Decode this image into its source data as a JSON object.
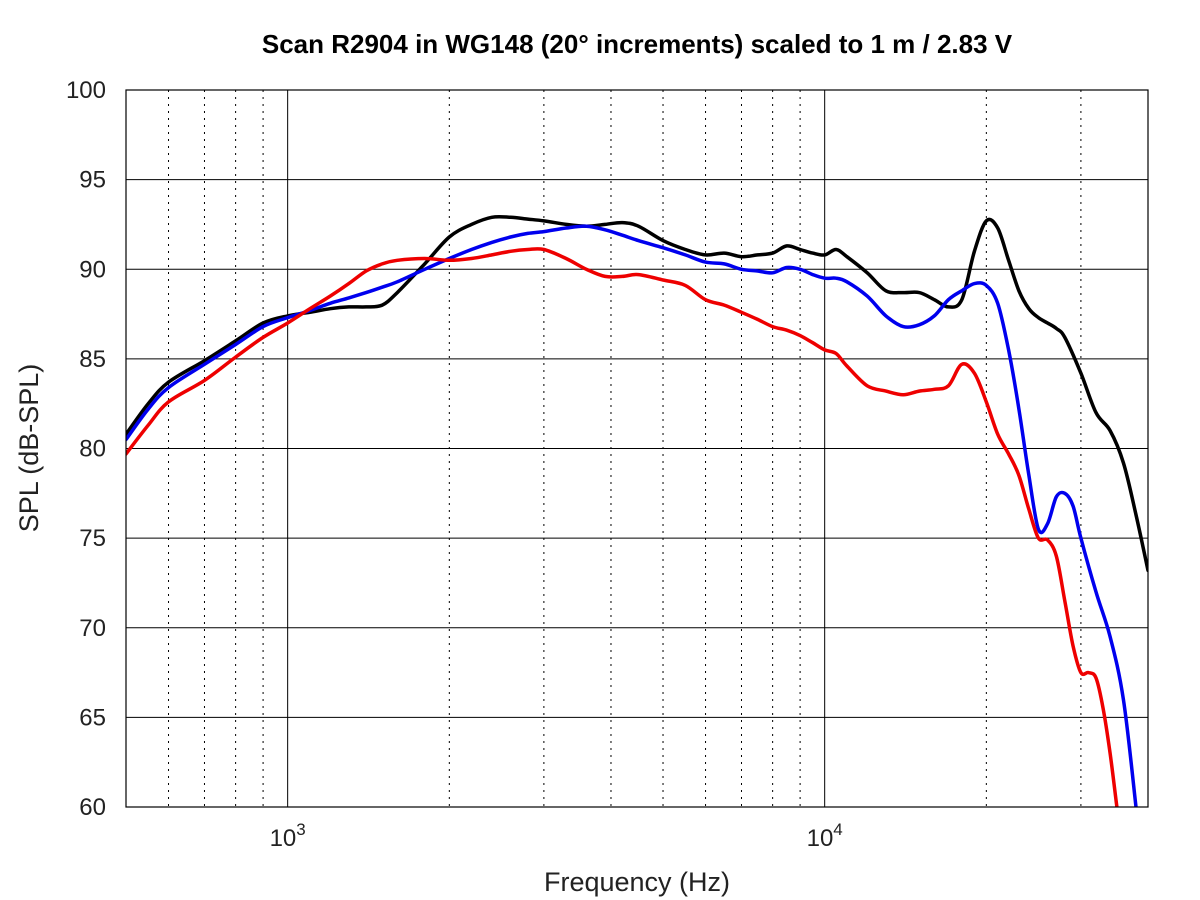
{
  "chart_data": {
    "type": "line",
    "title": "Scan R2904 in WG148 (20° increments) scaled to 1 m / 2.83 V",
    "xlabel": "Frequency (Hz)",
    "ylabel": "SPL (dB-SPL)",
    "x_scale": "log",
    "xlim": [
      500,
      40000
    ],
    "ylim": [
      60,
      100
    ],
    "y_ticks": [
      60,
      65,
      70,
      75,
      80,
      85,
      90,
      95,
      100
    ],
    "x_tick_labels": [
      {
        "value": 1000,
        "base": "10",
        "exp": "3"
      },
      {
        "value": 10000,
        "base": "10",
        "exp": "4"
      }
    ],
    "grid": true,
    "series": [
      {
        "color": "#000000",
        "x": [
          500,
          550,
          600,
          700,
          800,
          900,
          1000,
          1100,
          1200,
          1300,
          1400,
          1500,
          1600,
          1800,
          2000,
          2200,
          2400,
          2600,
          2800,
          3000,
          3300,
          3600,
          3900,
          4200,
          4500,
          5000,
          5500,
          6000,
          6500,
          7000,
          7500,
          8000,
          8500,
          9000,
          9500,
          10000,
          10500,
          11000,
          12000,
          13000,
          14000,
          15000,
          16000,
          17000,
          18000,
          19000,
          20000,
          21000,
          22000,
          23000,
          24000,
          25000,
          26000,
          27000,
          28000,
          30000,
          32000,
          34000,
          36000,
          38000,
          40000
        ],
        "values": [
          80.8,
          82.5,
          83.7,
          84.9,
          86.0,
          87.0,
          87.4,
          87.6,
          87.8,
          87.9,
          87.9,
          88.0,
          88.7,
          90.3,
          91.8,
          92.5,
          92.9,
          92.9,
          92.8,
          92.7,
          92.5,
          92.4,
          92.5,
          92.6,
          92.4,
          91.6,
          91.1,
          90.8,
          90.9,
          90.7,
          90.8,
          90.9,
          91.3,
          91.1,
          90.9,
          90.8,
          91.1,
          90.7,
          89.8,
          88.8,
          88.7,
          88.7,
          88.3,
          87.9,
          88.3,
          91.0,
          92.7,
          92.3,
          90.5,
          88.8,
          87.8,
          87.3,
          87.0,
          86.7,
          86.2,
          84.2,
          82.0,
          81.0,
          79.2,
          76.3,
          73.2
        ]
      },
      {
        "color": "#0000ee",
        "x": [
          500,
          550,
          600,
          700,
          800,
          900,
          1000,
          1100,
          1200,
          1300,
          1400,
          1500,
          1600,
          1800,
          2000,
          2200,
          2400,
          2600,
          2800,
          3000,
          3300,
          3600,
          3900,
          4200,
          4500,
          5000,
          5500,
          6000,
          6500,
          7000,
          7500,
          8000,
          8500,
          9000,
          9500,
          10000,
          10500,
          11000,
          12000,
          13000,
          14000,
          15000,
          16000,
          17000,
          18000,
          19000,
          20000,
          21000,
          22000,
          23000,
          24000,
          25000,
          26000,
          27000,
          28000,
          29000,
          30000,
          32000,
          34000,
          36000,
          38000
        ],
        "values": [
          80.5,
          82.2,
          83.4,
          84.7,
          85.8,
          86.8,
          87.3,
          87.7,
          88.1,
          88.4,
          88.7,
          89.0,
          89.3,
          90.0,
          90.6,
          91.1,
          91.5,
          91.8,
          92.0,
          92.1,
          92.3,
          92.4,
          92.2,
          91.9,
          91.6,
          91.2,
          90.8,
          90.4,
          90.3,
          90.0,
          89.9,
          89.8,
          90.1,
          90.0,
          89.7,
          89.5,
          89.5,
          89.3,
          88.5,
          87.4,
          86.8,
          86.9,
          87.4,
          88.3,
          88.8,
          89.2,
          89.1,
          88.1,
          85.5,
          82.2,
          78.5,
          75.5,
          75.8,
          77.3,
          77.5,
          76.8,
          75.0,
          72.0,
          69.5,
          66.0,
          60.0
        ]
      },
      {
        "color": "#ee0000",
        "x": [
          500,
          550,
          600,
          700,
          800,
          900,
          1000,
          1100,
          1200,
          1300,
          1400,
          1500,
          1600,
          1800,
          2000,
          2200,
          2400,
          2600,
          2800,
          3000,
          3300,
          3600,
          3900,
          4200,
          4500,
          5000,
          5500,
          6000,
          6500,
          7000,
          7500,
          8000,
          8500,
          9000,
          9500,
          10000,
          10500,
          11000,
          12000,
          13000,
          14000,
          15000,
          16000,
          17000,
          18000,
          19000,
          20000,
          21000,
          22000,
          23000,
          24000,
          25000,
          26000,
          27000,
          28000,
          29000,
          30000,
          31000,
          32000,
          33000,
          34000,
          35000
        ],
        "values": [
          79.7,
          81.3,
          82.6,
          83.8,
          85.1,
          86.2,
          87.0,
          87.8,
          88.5,
          89.2,
          89.9,
          90.3,
          90.5,
          90.6,
          90.5,
          90.6,
          90.8,
          91.0,
          91.1,
          91.1,
          90.6,
          90.0,
          89.6,
          89.6,
          89.7,
          89.4,
          89.1,
          88.3,
          88.0,
          87.6,
          87.2,
          86.8,
          86.6,
          86.3,
          85.9,
          85.5,
          85.3,
          84.6,
          83.5,
          83.2,
          83.0,
          83.2,
          83.3,
          83.5,
          84.7,
          84.2,
          82.6,
          80.8,
          79.7,
          78.5,
          76.6,
          75.0,
          74.9,
          74.0,
          71.5,
          69.0,
          67.5,
          67.5,
          67.2,
          65.5,
          63.0,
          60.0
        ]
      }
    ]
  }
}
